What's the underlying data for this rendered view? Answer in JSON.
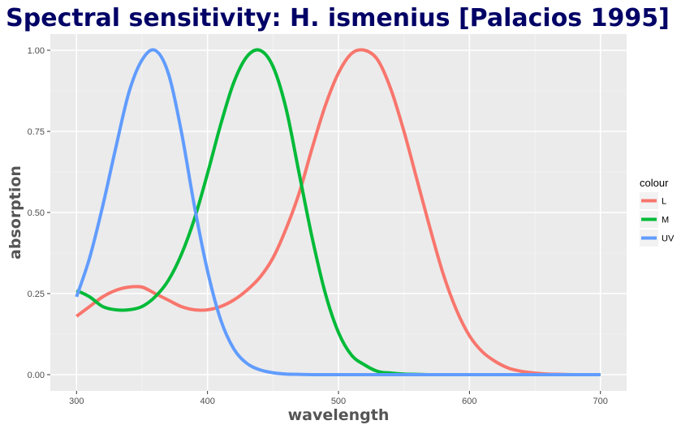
{
  "chart_data": {
    "type": "line",
    "title": "Spectral sensitivity: H. ismenius [Palacios 1995]",
    "xlabel": "wavelength",
    "ylabel": "absorption",
    "xlim": [
      280,
      720
    ],
    "ylim": [
      -0.05,
      1.05
    ],
    "x_ticks": [
      300,
      400,
      500,
      600,
      700
    ],
    "x_tick_labels": [
      "300",
      "400",
      "500",
      "600",
      "700"
    ],
    "y_ticks": [
      0,
      0.25,
      0.5,
      0.75,
      1.0
    ],
    "y_tick_labels": [
      "0.00",
      "0.25",
      "0.50",
      "0.75",
      "1.00"
    ],
    "grid": true,
    "legend": {
      "title": "colour",
      "position": "right"
    },
    "x": [
      300,
      310,
      320,
      330,
      340,
      350,
      360,
      370,
      380,
      390,
      400,
      410,
      420,
      430,
      440,
      450,
      460,
      470,
      480,
      490,
      500,
      510,
      520,
      530,
      540,
      550,
      560,
      570,
      580,
      590,
      600,
      610,
      620,
      630,
      640,
      650,
      660,
      670,
      680,
      690,
      700
    ],
    "series": [
      {
        "name": "L",
        "color": "#F8766D",
        "values": [
          0.18,
          0.21,
          0.24,
          0.26,
          0.27,
          0.27,
          0.25,
          0.23,
          0.21,
          0.2,
          0.2,
          0.21,
          0.23,
          0.26,
          0.3,
          0.36,
          0.45,
          0.56,
          0.7,
          0.83,
          0.93,
          0.99,
          1.0,
          0.97,
          0.88,
          0.75,
          0.6,
          0.45,
          0.31,
          0.2,
          0.12,
          0.07,
          0.04,
          0.02,
          0.01,
          0.005,
          0.002,
          0.001,
          0.0,
          0.0,
          0.0
        ]
      },
      {
        "name": "M",
        "color": "#00BA38",
        "values": [
          0.26,
          0.24,
          0.21,
          0.2,
          0.2,
          0.21,
          0.24,
          0.29,
          0.37,
          0.48,
          0.62,
          0.77,
          0.9,
          0.98,
          1.0,
          0.95,
          0.82,
          0.62,
          0.42,
          0.25,
          0.13,
          0.06,
          0.03,
          0.01,
          0.005,
          0.002,
          0.001,
          0.0,
          0.0,
          0.0,
          0.0,
          0.0,
          0.0,
          0.0,
          0.0,
          0.0,
          0.0,
          0.0,
          0.0,
          0.0,
          0.0
        ]
      },
      {
        "name": "UV",
        "color": "#619CFF",
        "values": [
          0.24,
          0.36,
          0.52,
          0.7,
          0.87,
          0.97,
          1.0,
          0.93,
          0.75,
          0.52,
          0.32,
          0.17,
          0.08,
          0.035,
          0.015,
          0.006,
          0.002,
          0.001,
          0.0,
          0.0,
          0.0,
          0.0,
          0.0,
          0.0,
          0.0,
          0.0,
          0.0,
          0.0,
          0.0,
          0.0,
          0.0,
          0.0,
          0.0,
          0.0,
          0.0,
          0.0,
          0.0,
          0.0,
          0.0,
          0.0,
          0.0
        ]
      }
    ]
  },
  "colors": {
    "panel_background": "#EBEBEB",
    "grid_major": "#FFFFFF",
    "title": "#000066"
  }
}
